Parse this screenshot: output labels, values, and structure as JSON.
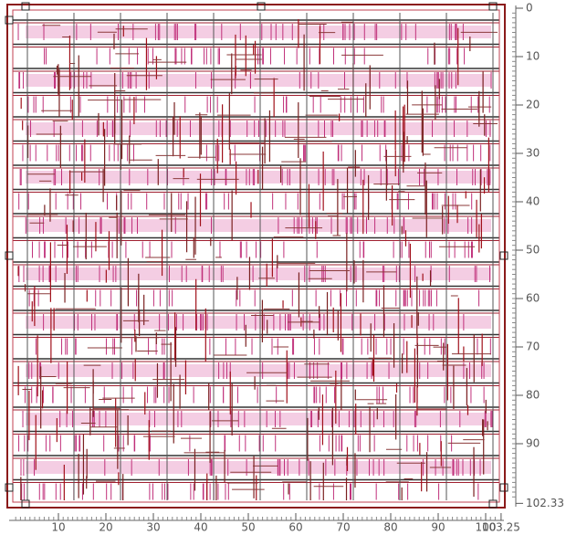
{
  "x_ruler": {
    "ticks": [
      10,
      20,
      30,
      40,
      50,
      60,
      70,
      80,
      90,
      100,
      103.25
    ]
  },
  "y_ruler": {
    "ticks": [
      0,
      10,
      20,
      30,
      40,
      50,
      60,
      70,
      80,
      90,
      102.33
    ]
  }
}
